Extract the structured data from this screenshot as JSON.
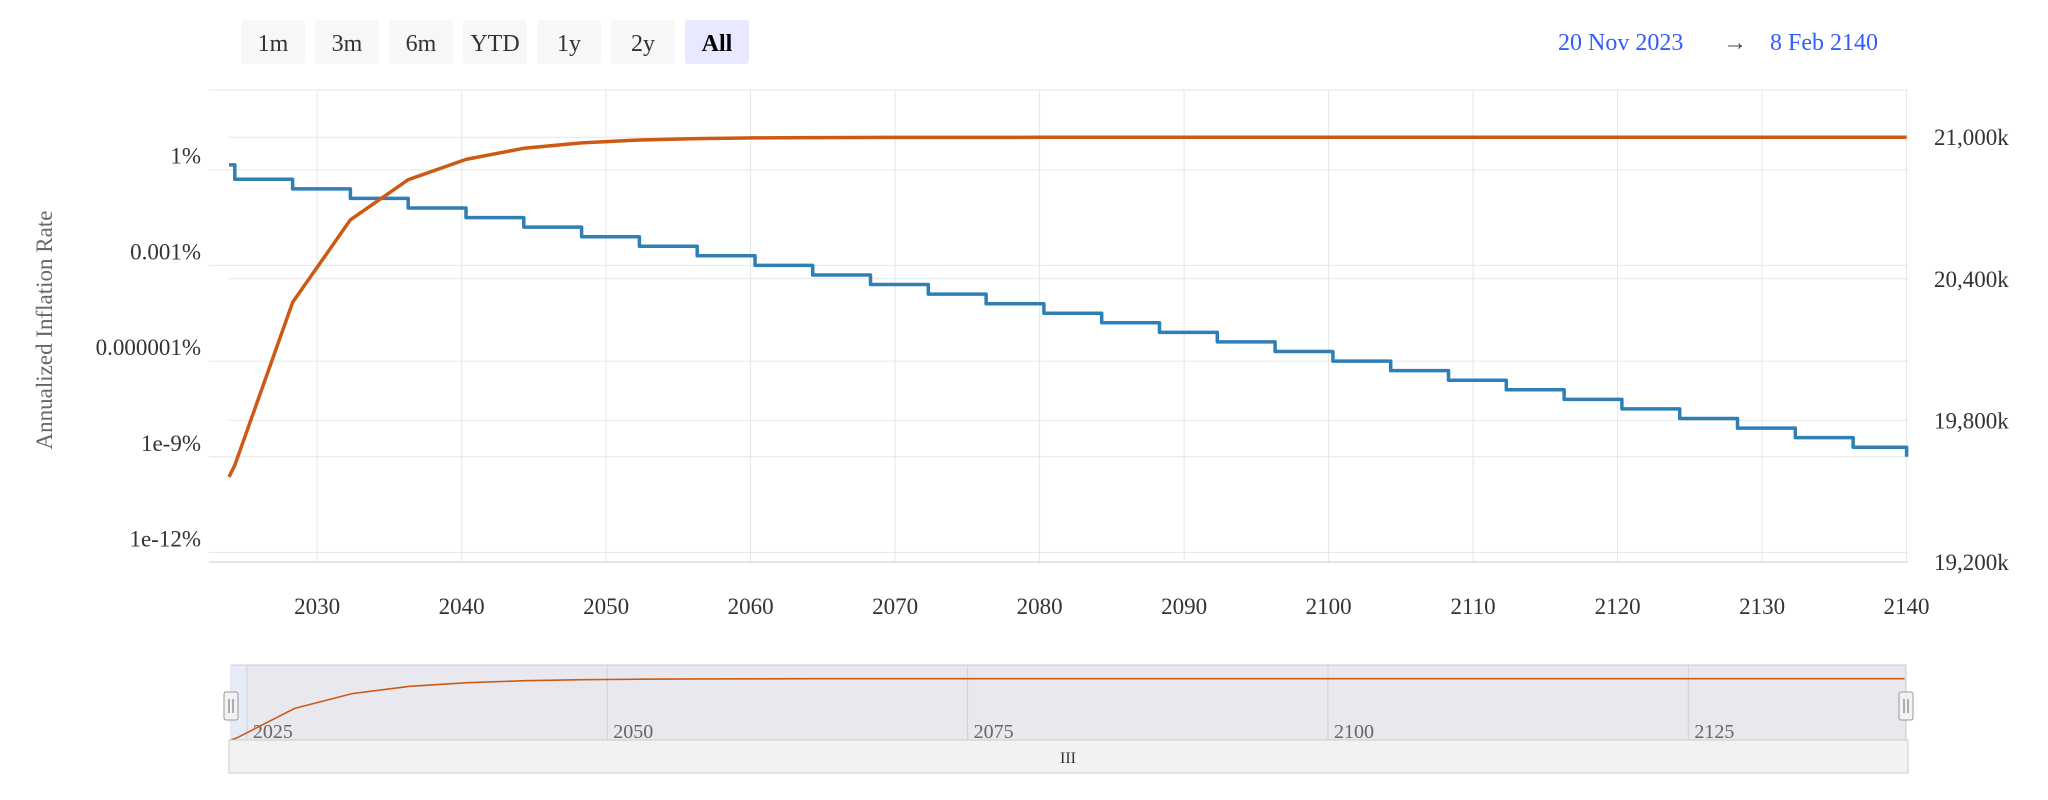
{
  "range_selector": {
    "buttons": [
      {
        "label": "1m",
        "selected": false
      },
      {
        "label": "3m",
        "selected": false
      },
      {
        "label": "6m",
        "selected": false
      },
      {
        "label": "YTD",
        "selected": false
      },
      {
        "label": "1y",
        "selected": false
      },
      {
        "label": "2y",
        "selected": false
      },
      {
        "label": "All",
        "selected": true
      }
    ],
    "from_date": "20 Nov 2023",
    "arrow": "→",
    "to_date": "8 Feb 2140"
  },
  "navigator": {
    "ticks": [
      "2025",
      "2050",
      "2075",
      "2100",
      "2125"
    ],
    "scrollbar_grip": "III",
    "range": [
      2023.9,
      2140.1
    ]
  },
  "colors": {
    "inflation": "#2e7fb6",
    "supply": "#cc5a14",
    "grid": "#e6e6e6",
    "navigator_mask": "#e8e8ee",
    "navigator_selected": "#e6ecf7"
  },
  "chart_data": {
    "type": "line",
    "title": "",
    "xlabel": "",
    "ylabel": "Annualized Inflation Rate",
    "xlim": [
      2023.9,
      2140.1
    ],
    "x_ticks": [
      2030,
      2040,
      2050,
      2060,
      2070,
      2080,
      2090,
      2100,
      2110,
      2120,
      2130,
      2140
    ],
    "y_left": {
      "scale": "log",
      "unit": "%",
      "range_exponent": [
        -12.3,
        2.5
      ],
      "ticks": [
        {
          "label": "1%",
          "exp": 0
        },
        {
          "label": "0.001%",
          "exp": -3
        },
        {
          "label": "0.000001%",
          "exp": -6
        },
        {
          "label": "1e-9%",
          "exp": -9
        },
        {
          "label": "1e-12%",
          "exp": -12
        }
      ]
    },
    "y_right": {
      "scale": "linear",
      "unit": "k",
      "range": [
        19200,
        21200
      ],
      "ticks": [
        {
          "label": "19,200k",
          "value": 19200
        },
        {
          "label": "19,800k",
          "value": 19800
        },
        {
          "label": "20,400k",
          "value": 20400
        },
        {
          "label": "21,000k",
          "value": 21000
        }
      ]
    },
    "series": [
      {
        "key": "inflation",
        "axis": "left",
        "x": [
          2023.9,
          2024.3,
          2028.3,
          2032.3,
          2036.3,
          2040.3,
          2044.3,
          2048.3,
          2052.3,
          2056.3,
          2060.3,
          2064.3,
          2068.3,
          2072.3,
          2076.3,
          2080.3,
          2084.3,
          2088.3,
          2092.3,
          2096.3,
          2100.3,
          2104.3,
          2108.3,
          2112.3,
          2116.3,
          2120.3,
          2124.3,
          2128.3,
          2132.3,
          2136.3,
          2140.0
        ],
        "exp": [
          0.15,
          -0.3,
          -0.6,
          -0.9,
          -1.2,
          -1.5,
          -1.8,
          -2.1,
          -2.4,
          -2.7,
          -3.0,
          -3.3,
          -3.6,
          -3.9,
          -4.2,
          -4.5,
          -4.8,
          -5.1,
          -5.4,
          -5.7,
          -6.0,
          -6.3,
          -6.6,
          -6.9,
          -7.2,
          -7.5,
          -7.8,
          -8.1,
          -8.4,
          -8.7,
          -9.0
        ]
      },
      {
        "key": "supply",
        "axis": "right",
        "x": [
          2023.9,
          2024.3,
          2028.3,
          2032.3,
          2036.3,
          2040.3,
          2044.3,
          2048.3,
          2052.3,
          2056.3,
          2060.3,
          2064.3,
          2070,
          2080,
          2090,
          2100,
          2110,
          2120,
          2130,
          2140
        ],
        "values": [
          19560,
          19610,
          20300,
          20650,
          20820,
          20906,
          20953,
          20976,
          20988,
          20994,
          20997,
          20998.5,
          20999,
          20999.5,
          21000,
          21000,
          21000,
          21000,
          21000,
          21000
        ]
      }
    ]
  }
}
